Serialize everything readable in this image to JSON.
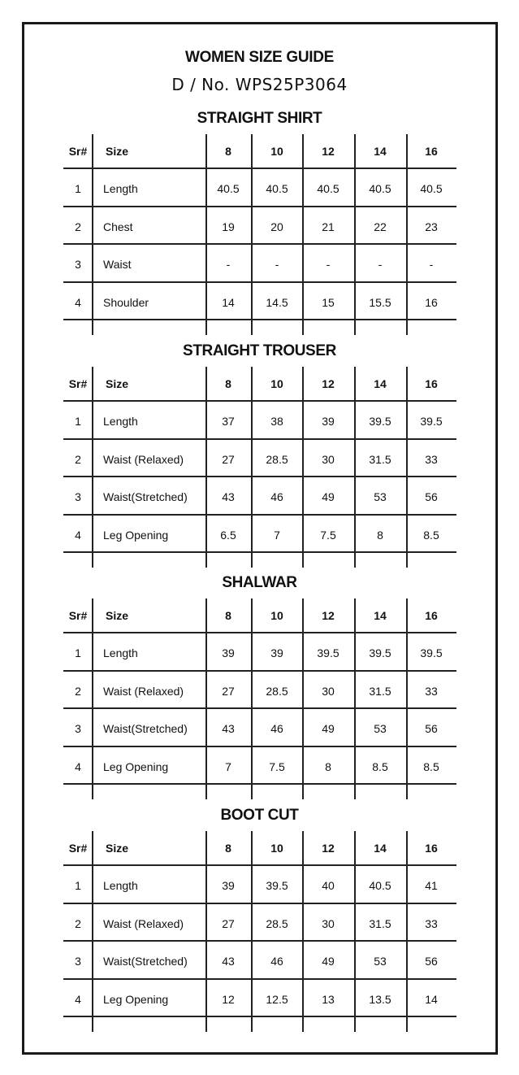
{
  "title": "WOMEN SIZE GUIDE",
  "design_no": "D / No. WPS25P3064",
  "columns": [
    "Sr#",
    "Size",
    "8",
    "10",
    "12",
    "14",
    "16"
  ],
  "sections": [
    {
      "title": "STRAIGHT SHIRT",
      "rows": [
        [
          "1",
          "Length",
          "40.5",
          "40.5",
          "40.5",
          "40.5",
          "40.5"
        ],
        [
          "2",
          "Chest",
          "19",
          "20",
          "21",
          "22",
          "23"
        ],
        [
          "3",
          "Waist",
          "-",
          "-",
          "-",
          "-",
          "-"
        ],
        [
          "4",
          "Shoulder",
          "14",
          "14.5",
          "15",
          "15.5",
          "16"
        ]
      ]
    },
    {
      "title": "STRAIGHT TROUSER",
      "rows": [
        [
          "1",
          "Length",
          "37",
          "38",
          "39",
          "39.5",
          "39.5"
        ],
        [
          "2",
          "Waist (Relaxed)",
          "27",
          "28.5",
          "30",
          "31.5",
          "33"
        ],
        [
          "3",
          "Waist(Stretched)",
          "43",
          "46",
          "49",
          "53",
          "56"
        ],
        [
          "4",
          "Leg Opening",
          "6.5",
          "7",
          "7.5",
          "8",
          "8.5"
        ]
      ]
    },
    {
      "title": "SHALWAR",
      "rows": [
        [
          "1",
          "Length",
          "39",
          "39",
          "39.5",
          "39.5",
          "39.5"
        ],
        [
          "2",
          "Waist (Relaxed)",
          "27",
          "28.5",
          "30",
          "31.5",
          "33"
        ],
        [
          "3",
          "Waist(Stretched)",
          "43",
          "46",
          "49",
          "53",
          "56"
        ],
        [
          "4",
          "Leg Opening",
          "7",
          "7.5",
          "8",
          "8.5",
          "8.5"
        ]
      ]
    },
    {
      "title": "BOOT CUT",
      "rows": [
        [
          "1",
          "Length",
          "39",
          "39.5",
          "40",
          "40.5",
          "41"
        ],
        [
          "2",
          "Waist (Relaxed)",
          "27",
          "28.5",
          "30",
          "31.5",
          "33"
        ],
        [
          "3",
          "Waist(Stretched)",
          "43",
          "46",
          "49",
          "53",
          "56"
        ],
        [
          "4",
          "Leg Opening",
          "12",
          "12.5",
          "13",
          "13.5",
          "14"
        ]
      ]
    }
  ]
}
